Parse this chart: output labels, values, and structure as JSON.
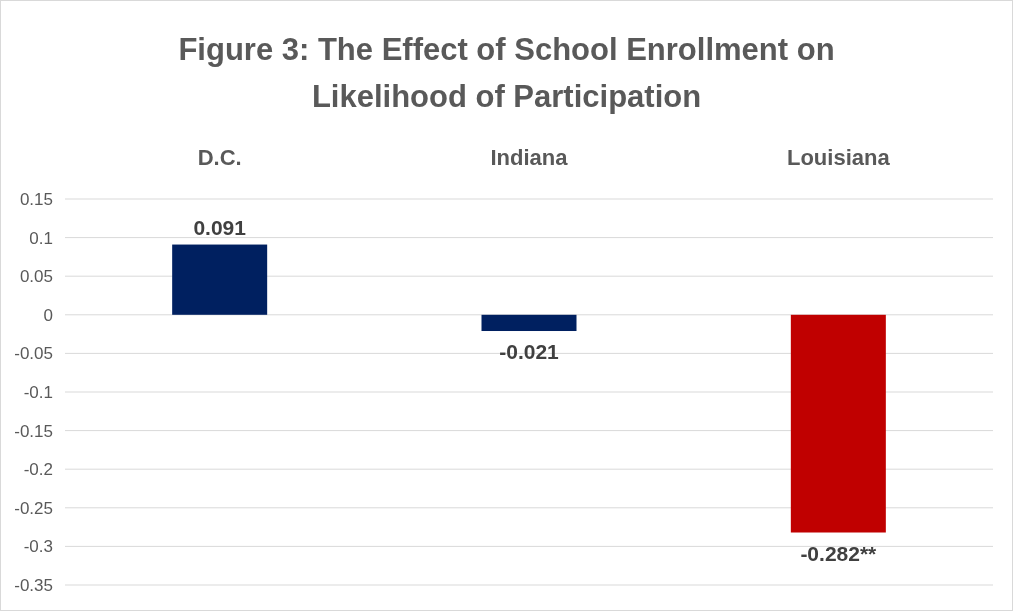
{
  "chart_data": {
    "type": "bar",
    "title": "Figure 3: The Effect of School Enrollment on Likelihood of Participation",
    "categories": [
      "D.C.",
      "Indiana",
      "Louisiana"
    ],
    "values": [
      0.091,
      -0.021,
      -0.282
    ],
    "colors": [
      "#002060",
      "#002060",
      "#c00000"
    ],
    "value_labels": [
      "0.091",
      "-0.021",
      "-0.282**"
    ],
    "ylim": [
      -0.35,
      0.15
    ],
    "yticks": [
      0.15,
      0.1,
      0.05,
      0,
      -0.05,
      -0.1,
      -0.15,
      -0.2,
      -0.25,
      -0.3,
      -0.35
    ],
    "grid": "y"
  }
}
